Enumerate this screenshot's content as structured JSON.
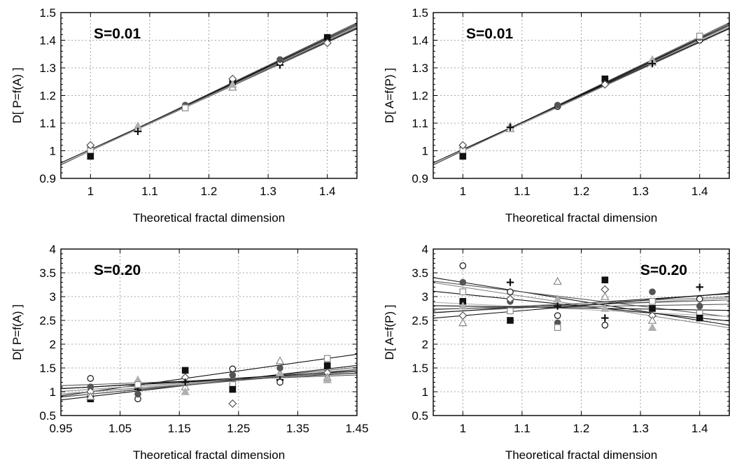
{
  "colors": {
    "black": "#111111",
    "dark_gray": "#555555",
    "mid_gray": "#8a8a8a",
    "light_gray": "#b0b0b0",
    "background": "#ffffff"
  },
  "chart_data": [
    {
      "type": "scatter",
      "panel_label": "S=0.01",
      "xlabel": "Theoretical fractal dimension",
      "ylabel": "D[ P=f(A) ]",
      "xlim": [
        0.95,
        1.45
      ],
      "ylim": [
        0.9,
        1.5
      ],
      "xticks": [
        1,
        1.1,
        1.2,
        1.3,
        1.4
      ],
      "xtick_labels": [
        "1",
        "1.1",
        "1.2",
        "1.3",
        "1.4"
      ],
      "yticks": [
        0.9,
        1,
        1.1,
        1.2,
        1.3,
        1.4,
        1.5
      ],
      "ytick_labels": [
        "0.9",
        "1",
        "1.1",
        "1.2",
        "1.3",
        "1.4",
        "1.5"
      ],
      "grid": true,
      "label_position": "top-left",
      "x": [
        1,
        1.08,
        1.16,
        1.24,
        1.32,
        1.4
      ],
      "points": [
        {
          "x": 1,
          "y": 1.01
        },
        {
          "x": 1,
          "y": 0.99
        },
        {
          "x": 1,
          "y": 1.0
        },
        {
          "x": 1,
          "y": 0.98
        },
        {
          "x": 1,
          "y": 1.02
        },
        {
          "x": 1.08,
          "y": 1.08
        },
        {
          "x": 1.08,
          "y": 1.09
        },
        {
          "x": 1.08,
          "y": 1.07
        },
        {
          "x": 1.16,
          "y": 1.16
        },
        {
          "x": 1.16,
          "y": 1.165
        },
        {
          "x": 1.16,
          "y": 1.155
        },
        {
          "x": 1.24,
          "y": 1.25
        },
        {
          "x": 1.24,
          "y": 1.26
        },
        {
          "x": 1.24,
          "y": 1.23
        },
        {
          "x": 1.24,
          "y": 1.24
        },
        {
          "x": 1.32,
          "y": 1.31
        },
        {
          "x": 1.32,
          "y": 1.32
        },
        {
          "x": 1.32,
          "y": 1.33
        },
        {
          "x": 1.4,
          "y": 1.4
        },
        {
          "x": 1.4,
          "y": 1.41
        },
        {
          "x": 1.4,
          "y": 1.39
        }
      ],
      "fit_lines": [
        {
          "intercept": -0.02,
          "slope": 1.02
        },
        {
          "intercept": 0.02,
          "slope": 0.98
        },
        {
          "intercept": 0.0,
          "slope": 1.0
        },
        {
          "intercept": -0.01,
          "slope": 1.01
        },
        {
          "intercept": 0.01,
          "slope": 0.99
        },
        {
          "intercept": -0.03,
          "slope": 1.03
        },
        {
          "intercept": 0.03,
          "slope": 0.975
        },
        {
          "intercept": 0.005,
          "slope": 0.995
        }
      ]
    },
    {
      "type": "scatter",
      "panel_label": "S=0.01",
      "xlabel": "Theoretical fractal dimension",
      "ylabel": "D[ A=f(P) ]",
      "xlim": [
        0.95,
        1.45
      ],
      "ylim": [
        0.9,
        1.5
      ],
      "xticks": [
        1,
        1.1,
        1.2,
        1.3,
        1.4
      ],
      "xtick_labels": [
        "1",
        "1.1",
        "1.2",
        "1.3",
        "1.4"
      ],
      "yticks": [
        0.9,
        1,
        1.1,
        1.2,
        1.3,
        1.4,
        1.5
      ],
      "ytick_labels": [
        "0.9",
        "1",
        "1.1",
        "1.2",
        "1.3",
        "1.4",
        "1.5"
      ],
      "grid": true,
      "label_position": "top-left",
      "x": [
        1,
        1.08,
        1.16,
        1.24,
        1.32,
        1.4
      ],
      "points": [
        {
          "x": 1,
          "y": 1.01
        },
        {
          "x": 1,
          "y": 0.99
        },
        {
          "x": 1,
          "y": 1.0
        },
        {
          "x": 1,
          "y": 0.98
        },
        {
          "x": 1,
          "y": 1.02
        },
        {
          "x": 1.08,
          "y": 1.08
        },
        {
          "x": 1.08,
          "y": 1.09
        },
        {
          "x": 1.08,
          "y": 1.085
        },
        {
          "x": 1.16,
          "y": 1.16
        },
        {
          "x": 1.16,
          "y": 1.165
        },
        {
          "x": 1.24,
          "y": 1.25
        },
        {
          "x": 1.24,
          "y": 1.26
        },
        {
          "x": 1.24,
          "y": 1.24
        },
        {
          "x": 1.32,
          "y": 1.32
        },
        {
          "x": 1.32,
          "y": 1.33
        },
        {
          "x": 1.32,
          "y": 1.315
        },
        {
          "x": 1.4,
          "y": 1.4
        },
        {
          "x": 1.4,
          "y": 1.41
        },
        {
          "x": 1.4,
          "y": 1.415
        }
      ],
      "fit_lines": [
        {
          "intercept": -0.02,
          "slope": 1.02
        },
        {
          "intercept": 0.02,
          "slope": 0.98
        },
        {
          "intercept": 0.0,
          "slope": 1.0
        },
        {
          "intercept": -0.01,
          "slope": 1.01
        },
        {
          "intercept": 0.01,
          "slope": 0.99
        },
        {
          "intercept": -0.03,
          "slope": 1.03
        },
        {
          "intercept": 0.03,
          "slope": 0.975
        }
      ]
    },
    {
      "type": "scatter",
      "panel_label": "S=0.20",
      "xlabel": "Theoretical fractal dimension",
      "ylabel": "D[ P=f(A) ]",
      "xlim": [
        0.95,
        1.45
      ],
      "ylim": [
        0.5,
        4
      ],
      "xticks": [
        0.95,
        1.05,
        1.15,
        1.25,
        1.35,
        1.45
      ],
      "xtick_labels": [
        "0.95",
        "1.05",
        "1.15",
        "1.25",
        "1.35",
        "1.45"
      ],
      "yticks": [
        0.5,
        1,
        1.5,
        2,
        2.5,
        3,
        3.5,
        4
      ],
      "ytick_labels": [
        "0.5",
        "1",
        "1.5",
        "2",
        "2.5",
        "3",
        "3.5",
        "4"
      ],
      "grid": true,
      "label_position": "top-left",
      "x": [
        1,
        1.08,
        1.16,
        1.24,
        1.32,
        1.4
      ],
      "points": [
        {
          "x": 1,
          "y": 1.28
        },
        {
          "x": 1,
          "y": 1.1
        },
        {
          "x": 1,
          "y": 0.95
        },
        {
          "x": 1,
          "y": 0.85
        },
        {
          "x": 1,
          "y": 1.0
        },
        {
          "x": 1,
          "y": 0.9
        },
        {
          "x": 1.08,
          "y": 1.25
        },
        {
          "x": 1.08,
          "y": 1.05
        },
        {
          "x": 1.08,
          "y": 0.85
        },
        {
          "x": 1.08,
          "y": 0.95
        },
        {
          "x": 1.08,
          "y": 1.15
        },
        {
          "x": 1.16,
          "y": 1.45
        },
        {
          "x": 1.16,
          "y": 1.3
        },
        {
          "x": 1.16,
          "y": 1.1
        },
        {
          "x": 1.16,
          "y": 1.0
        },
        {
          "x": 1.16,
          "y": 1.2
        },
        {
          "x": 1.24,
          "y": 1.48
        },
        {
          "x": 1.24,
          "y": 1.35
        },
        {
          "x": 1.24,
          "y": 1.15
        },
        {
          "x": 1.24,
          "y": 1.05
        },
        {
          "x": 1.24,
          "y": 0.75
        },
        {
          "x": 1.32,
          "y": 1.65
        },
        {
          "x": 1.32,
          "y": 1.4
        },
        {
          "x": 1.32,
          "y": 1.25
        },
        {
          "x": 1.32,
          "y": 1.2
        },
        {
          "x": 1.32,
          "y": 1.5
        },
        {
          "x": 1.4,
          "y": 1.7
        },
        {
          "x": 1.4,
          "y": 1.55
        },
        {
          "x": 1.4,
          "y": 1.4
        },
        {
          "x": 1.4,
          "y": 1.3
        },
        {
          "x": 1.4,
          "y": 1.25
        }
      ],
      "fit_lines": [
        {
          "intercept": -0.75,
          "slope": 1.75
        },
        {
          "intercept": -0.3,
          "slope": 1.25
        },
        {
          "intercept": 0.2,
          "slope": 0.85
        },
        {
          "intercept": 0.45,
          "slope": 0.65
        },
        {
          "intercept": -0.05,
          "slope": 1.05
        },
        {
          "intercept": 0.7,
          "slope": 0.45
        },
        {
          "intercept": -0.55,
          "slope": 1.45
        },
        {
          "intercept": 0.05,
          "slope": 0.95
        },
        {
          "intercept": 0.35,
          "slope": 0.75
        },
        {
          "intercept": -0.2,
          "slope": 1.15
        }
      ]
    },
    {
      "type": "scatter",
      "panel_label": "S=0.20",
      "xlabel": "Theoretical fractal dimension",
      "ylabel": "D[ A=f(P) ]",
      "xlim": [
        0.95,
        1.45
      ],
      "ylim": [
        0.5,
        4
      ],
      "xticks": [
        1,
        1.1,
        1.2,
        1.3,
        1.4
      ],
      "xtick_labels": [
        "1",
        "1.1",
        "1.2",
        "1.3",
        "1.4"
      ],
      "yticks": [
        0.5,
        1,
        1.5,
        2,
        2.5,
        3,
        3.5,
        4
      ],
      "ytick_labels": [
        "0.5",
        "1",
        "1.5",
        "2",
        "2.5",
        "3",
        "3.5",
        "4"
      ],
      "grid": true,
      "label_position": "top-right",
      "x": [
        1,
        1.08,
        1.16,
        1.24,
        1.32,
        1.4
      ],
      "points": [
        {
          "x": 1,
          "y": 3.65
        },
        {
          "x": 1,
          "y": 3.3
        },
        {
          "x": 1,
          "y": 3.1
        },
        {
          "x": 1,
          "y": 2.9
        },
        {
          "x": 1,
          "y": 2.6
        },
        {
          "x": 1,
          "y": 2.45
        },
        {
          "x": 1,
          "y": 2.8
        },
        {
          "x": 1.08,
          "y": 3.3
        },
        {
          "x": 1.08,
          "y": 3.1
        },
        {
          "x": 1.08,
          "y": 2.9
        },
        {
          "x": 1.08,
          "y": 2.7
        },
        {
          "x": 1.08,
          "y": 2.5
        },
        {
          "x": 1.08,
          "y": 2.95
        },
        {
          "x": 1.16,
          "y": 3.32
        },
        {
          "x": 1.16,
          "y": 2.95
        },
        {
          "x": 1.16,
          "y": 2.8
        },
        {
          "x": 1.16,
          "y": 2.6
        },
        {
          "x": 1.16,
          "y": 2.45
        },
        {
          "x": 1.16,
          "y": 2.35
        },
        {
          "x": 1.24,
          "y": 3.35
        },
        {
          "x": 1.24,
          "y": 3.15
        },
        {
          "x": 1.24,
          "y": 3.0
        },
        {
          "x": 1.24,
          "y": 2.75
        },
        {
          "x": 1.24,
          "y": 2.55
        },
        {
          "x": 1.24,
          "y": 2.4
        },
        {
          "x": 1.32,
          "y": 3.1
        },
        {
          "x": 1.32,
          "y": 2.9
        },
        {
          "x": 1.32,
          "y": 2.75
        },
        {
          "x": 1.32,
          "y": 2.6
        },
        {
          "x": 1.32,
          "y": 2.5
        },
        {
          "x": 1.32,
          "y": 2.35
        },
        {
          "x": 1.4,
          "y": 3.2
        },
        {
          "x": 1.4,
          "y": 2.95
        },
        {
          "x": 1.4,
          "y": 2.8
        },
        {
          "x": 1.4,
          "y": 2.65
        },
        {
          "x": 1.4,
          "y": 2.55
        }
      ],
      "fit_lines": [
        {
          "intercept": 5.3,
          "slope": -2.0
        },
        {
          "intercept": 4.75,
          "slope": -1.5
        },
        {
          "intercept": 2.1,
          "slope": 0.6
        },
        {
          "intercept": 1.9,
          "slope": 0.8
        },
        {
          "intercept": 3.45,
          "slope": -0.6
        },
        {
          "intercept": 2.35,
          "slope": 0.4
        },
        {
          "intercept": 4.3,
          "slope": -1.25
        },
        {
          "intercept": 2.2,
          "slope": 0.55
        },
        {
          "intercept": 3.0,
          "slope": -0.2
        },
        {
          "intercept": 2.55,
          "slope": 0.2
        },
        {
          "intercept": 5.1,
          "slope": -1.9
        },
        {
          "intercept": 1.55,
          "slope": 1.05
        }
      ]
    }
  ]
}
